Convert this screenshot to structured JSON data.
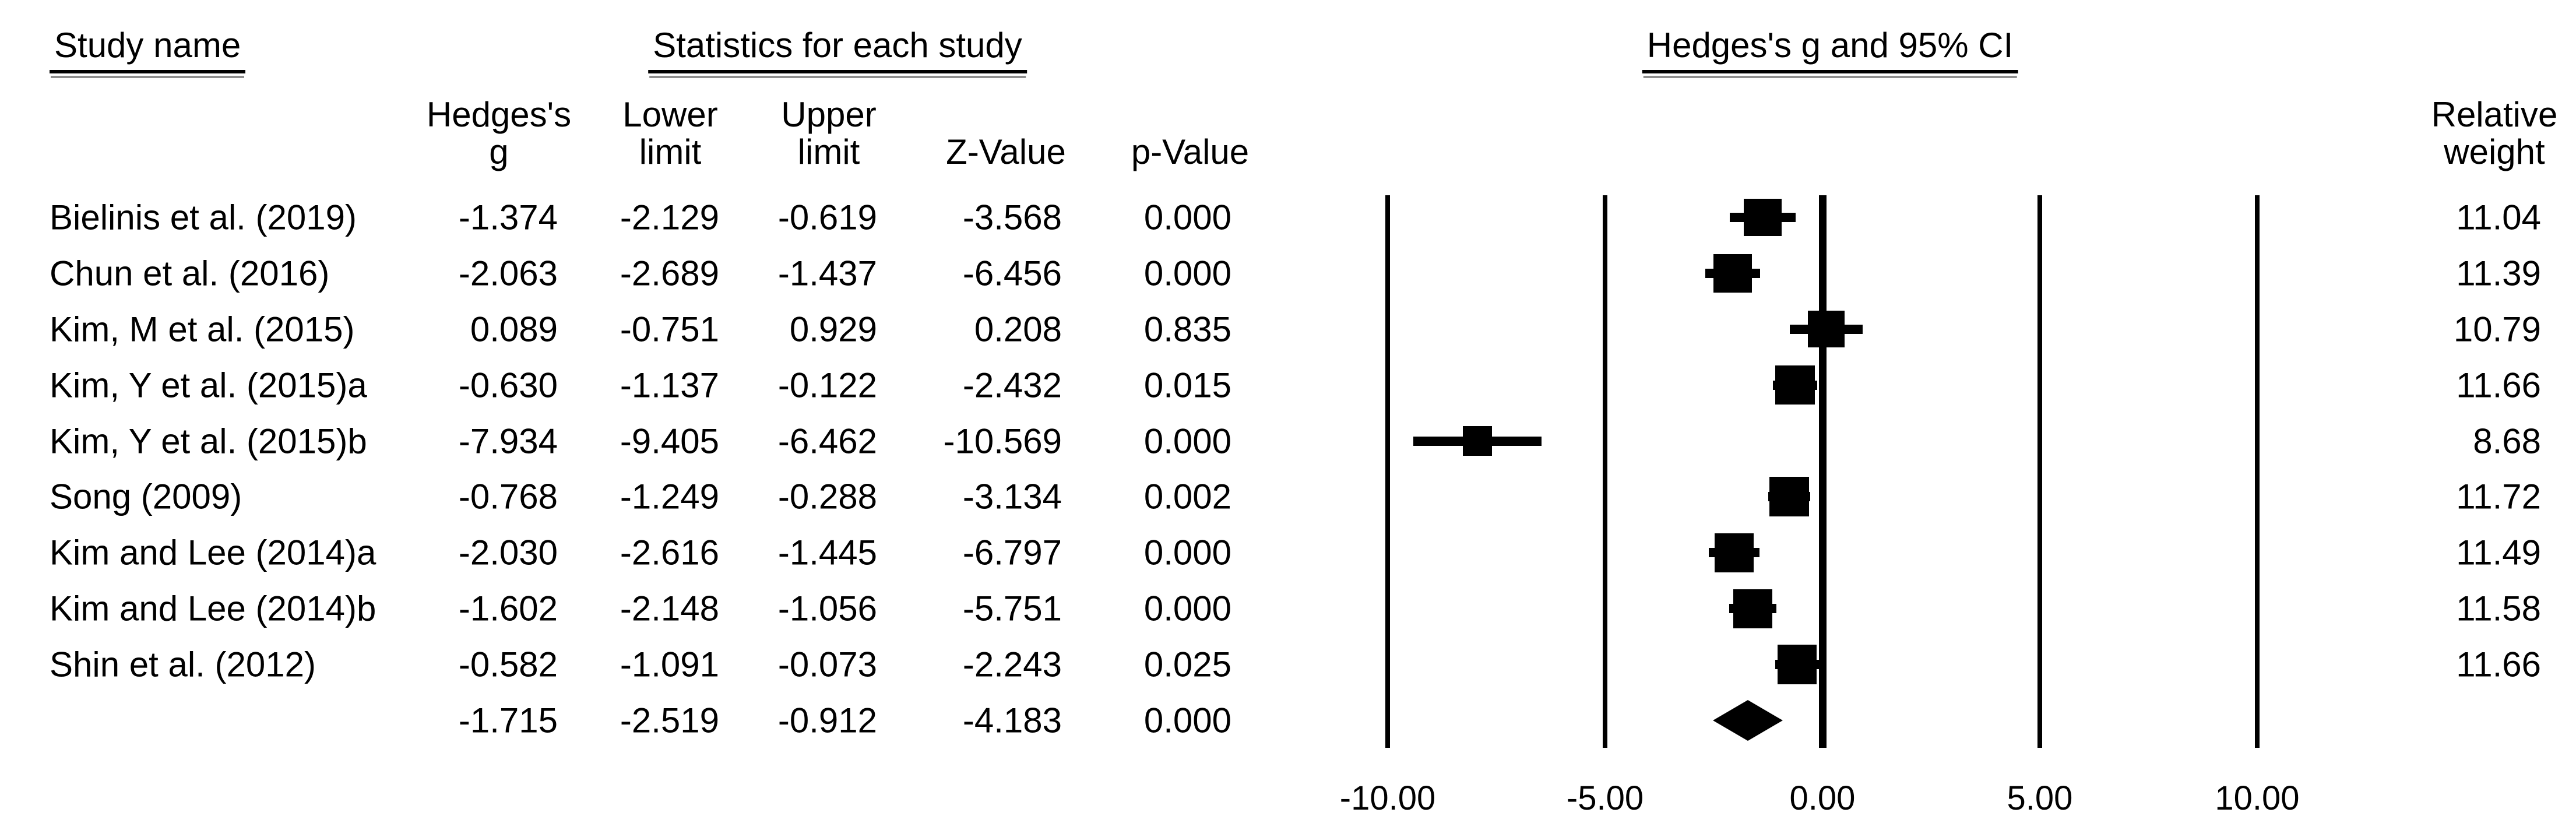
{
  "figure": {
    "background": "#ffffff",
    "text_color": "#000000",
    "marker_color": "#000000",
    "study_column_title": "Study name",
    "stats_group_title": "Statistics for each study",
    "plot_group_title": "Hedges's g and 95% CI",
    "column_headers": {
      "hedges_g": [
        "Hedges's",
        "g"
      ],
      "lower_limit": [
        "Lower",
        "limit"
      ],
      "upper_limit": [
        "Upper",
        "limit"
      ],
      "z_value": "Z-Value",
      "p_value": "p-Value",
      "relative_weight": [
        "Relative",
        "weight"
      ]
    }
  },
  "chart_data": {
    "type": "scatter",
    "variant": "forest-plot-meta-analysis",
    "title": "Hedges's g and 95% CI",
    "xlabel": "Hedges's g",
    "x_axis": {
      "tick_values": [
        -10,
        -5,
        0,
        5,
        10
      ],
      "tick_labels": [
        "-10.00",
        "-5.00",
        "0.00",
        "5.00",
        "10.00"
      ],
      "range": [
        -10,
        10
      ],
      "gridlines": "vertical-line-at-each-tick",
      "zero_line_bold": true
    },
    "marker_style": "black-square-sized-by-relative-weight-with-ci-whisker",
    "summary_marker_style": "black-diamond-spanning-ci",
    "legend_position": "none",
    "studies": [
      {
        "name": "Bielinis et al. (2019)",
        "hedges_g": -1.374,
        "lower_limit": -2.129,
        "upper_limit": -0.619,
        "z_value": -3.568,
        "p_value": 0.0,
        "relative_weight": 11.04
      },
      {
        "name": "Chun et al. (2016)",
        "hedges_g": -2.063,
        "lower_limit": -2.689,
        "upper_limit": -1.437,
        "z_value": -6.456,
        "p_value": 0.0,
        "relative_weight": 11.39
      },
      {
        "name": "Kim, M et al. (2015)",
        "hedges_g": 0.089,
        "lower_limit": -0.751,
        "upper_limit": 0.929,
        "z_value": 0.208,
        "p_value": 0.835,
        "relative_weight": 10.79
      },
      {
        "name": "Kim, Y et al. (2015)a",
        "hedges_g": -0.63,
        "lower_limit": -1.137,
        "upper_limit": -0.122,
        "z_value": -2.432,
        "p_value": 0.015,
        "relative_weight": 11.66
      },
      {
        "name": "Kim, Y et al. (2015)b",
        "hedges_g": -7.934,
        "lower_limit": -9.405,
        "upper_limit": -6.462,
        "z_value": -10.569,
        "p_value": 0.0,
        "relative_weight": 8.68
      },
      {
        "name": "Song (2009)",
        "hedges_g": -0.768,
        "lower_limit": -1.249,
        "upper_limit": -0.288,
        "z_value": -3.134,
        "p_value": 0.002,
        "relative_weight": 11.72
      },
      {
        "name": "Kim and Lee (2014)a",
        "hedges_g": -2.03,
        "lower_limit": -2.616,
        "upper_limit": -1.445,
        "z_value": -6.797,
        "p_value": 0.0,
        "relative_weight": 11.49
      },
      {
        "name": "Kim and Lee (2014)b",
        "hedges_g": -1.602,
        "lower_limit": -2.148,
        "upper_limit": -1.056,
        "z_value": -5.751,
        "p_value": 0.0,
        "relative_weight": 11.58
      },
      {
        "name": "Shin et al. (2012)",
        "hedges_g": -0.582,
        "lower_limit": -1.091,
        "upper_limit": -0.073,
        "z_value": -2.243,
        "p_value": 0.025,
        "relative_weight": 11.66
      }
    ],
    "summary": {
      "hedges_g": -1.715,
      "lower_limit": -2.519,
      "upper_limit": -0.912,
      "z_value": -4.183,
      "p_value": 0.0
    }
  }
}
